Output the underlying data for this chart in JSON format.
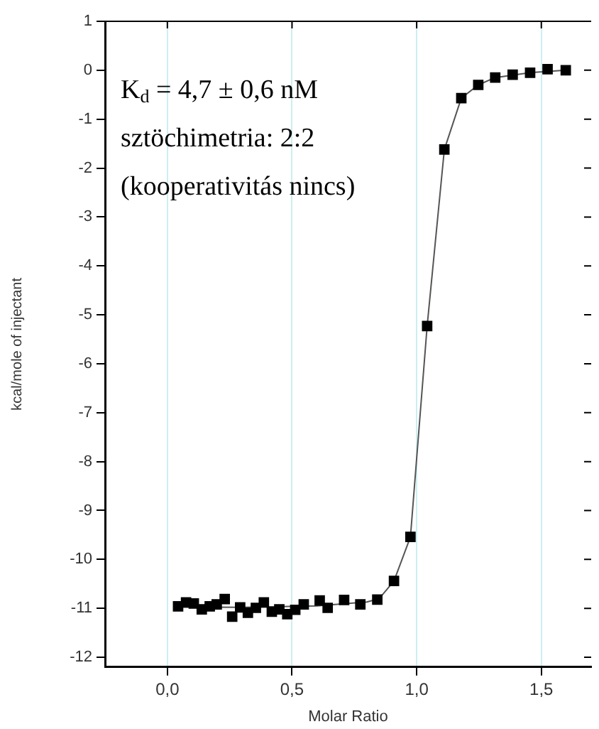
{
  "chart_data": {
    "type": "scatter",
    "xlabel": "Molar Ratio",
    "ylabel": "kcal/mole of injectant",
    "annotations": [
      "K$_{d}$ = 4,7 ± 0,6 nM",
      "sztöchimetria: 2:2",
      "(kooperativitás nincs)"
    ],
    "xlim": [
      -0.25,
      1.7
    ],
    "ylim": [
      -12.2,
      1
    ],
    "xticks": [
      {
        "value": 0,
        "label": "0,0"
      },
      {
        "value": 0.5,
        "label": "0,5"
      },
      {
        "value": 1,
        "label": "1,0"
      },
      {
        "value": 1.5,
        "label": "1,5"
      }
    ],
    "yticks": [
      -12,
      -11,
      -10,
      -9,
      -8,
      -7,
      -6,
      -5,
      -4,
      -3,
      -2,
      -1,
      0,
      1
    ],
    "grid": "x",
    "legend": false,
    "series": [
      {
        "type": "scatter",
        "color": "#000000",
        "marker": "square",
        "x": [
          0.043,
          0.075,
          0.106,
          0.138,
          0.17,
          0.198,
          0.23,
          0.26,
          0.292,
          0.323,
          0.355,
          0.387,
          0.419,
          0.449,
          0.481,
          0.513,
          0.547,
          0.611,
          0.643,
          0.709,
          0.774,
          0.842,
          0.909,
          0.975,
          1.042,
          1.111,
          1.179,
          1.247,
          1.315,
          1.385,
          1.455,
          1.525,
          1.598
        ],
        "values": [
          -10.96,
          -10.88,
          -10.9,
          -11.02,
          -10.96,
          -10.92,
          -10.81,
          -11.17,
          -10.98,
          -11.09,
          -10.99,
          -10.88,
          -11.07,
          -11.02,
          -11.12,
          -11.03,
          -10.92,
          -10.84,
          -10.99,
          -10.83,
          -10.92,
          -10.82,
          -10.44,
          -9.54,
          -5.23,
          -1.62,
          -0.57,
          -0.3,
          -0.15,
          -0.09,
          -0.05,
          0.02,
          0.0
        ]
      },
      {
        "type": "line",
        "color": "#555555",
        "marker": "none",
        "x": [
          0.043,
          0.3,
          0.6,
          0.8,
          0.85,
          0.909,
          0.975,
          1.042,
          1.111,
          1.179,
          1.247,
          1.315,
          1.455,
          1.598
        ],
        "values": [
          -10.97,
          -10.98,
          -10.95,
          -10.87,
          -10.8,
          -10.44,
          -9.54,
          -5.23,
          -1.62,
          -0.57,
          -0.3,
          -0.15,
          -0.05,
          0.0
        ]
      }
    ]
  }
}
